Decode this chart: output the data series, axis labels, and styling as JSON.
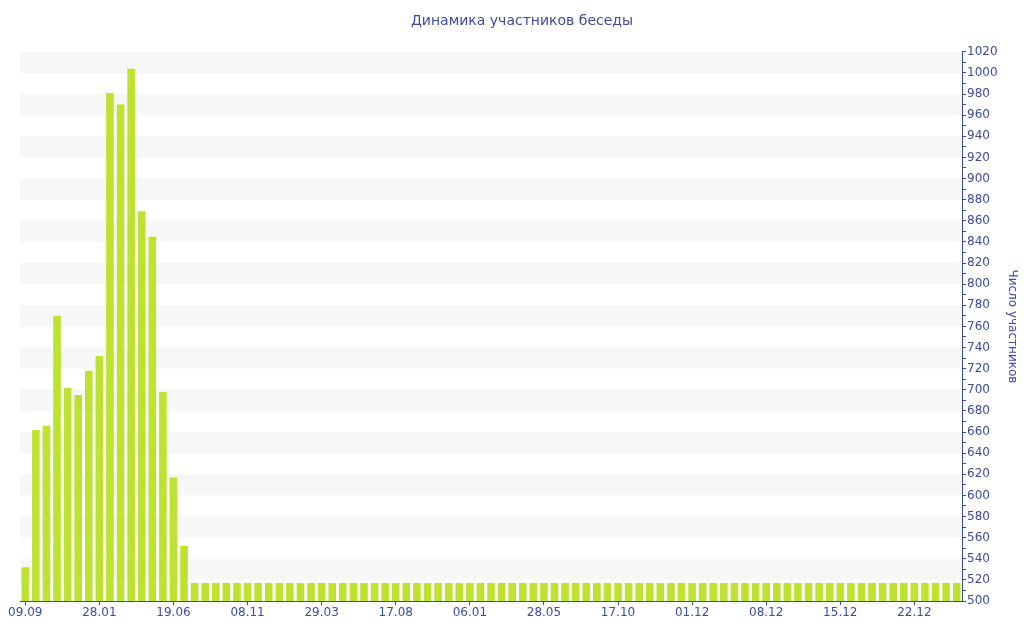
{
  "chart_data": {
    "type": "bar",
    "title": "Динамика участников беседы",
    "ylabel": "Число участников",
    "categories": [
      "09.09",
      null,
      null,
      null,
      null,
      null,
      null,
      "28.01",
      null,
      null,
      null,
      null,
      null,
      null,
      "19.06",
      null,
      null,
      null,
      null,
      null,
      null,
      "08.11",
      null,
      null,
      null,
      null,
      null,
      null,
      "29.03",
      null,
      null,
      null,
      null,
      null,
      null,
      "17.08",
      null,
      null,
      null,
      null,
      null,
      null,
      "06.01",
      null,
      null,
      null,
      null,
      null,
      null,
      "28.05",
      null,
      null,
      null,
      null,
      null,
      null,
      "17.10",
      null,
      null,
      null,
      null,
      null,
      null,
      "01.12",
      null,
      null,
      null,
      null,
      null,
      null,
      "08.12",
      null,
      null,
      null,
      null,
      null,
      null,
      "15.12",
      null,
      null,
      null,
      null,
      null,
      null,
      "22.12",
      null,
      null,
      null,
      null
    ],
    "values": [
      532,
      662,
      666,
      770,
      702,
      695,
      718,
      732,
      981,
      970,
      1004,
      869,
      845,
      698,
      617,
      552,
      517,
      517,
      517,
      517,
      517,
      517,
      517,
      517,
      517,
      517,
      517,
      517,
      517,
      517,
      517,
      517,
      517,
      517,
      517,
      517,
      517,
      517,
      517,
      517,
      517,
      517,
      517,
      517,
      517,
      517,
      517,
      517,
      517,
      517,
      517,
      517,
      517,
      517,
      517,
      517,
      517,
      517,
      517,
      517,
      517,
      517,
      517,
      517,
      517,
      517,
      517,
      517,
      517,
      517,
      517,
      517,
      517,
      517,
      517,
      517,
      517,
      517,
      517,
      517,
      517,
      517,
      517,
      517,
      517,
      517,
      517,
      517,
      517
    ],
    "color": "#bde22f",
    "ylim": [
      500,
      1020
    ],
    "yticks": [
      500,
      {
        "value": 510,
        "label": null
      },
      520,
      {
        "value": 530,
        "label": null
      },
      540,
      {
        "value": 550,
        "label": null
      },
      560,
      {
        "value": 570,
        "label": null
      },
      580,
      {
        "value": 590,
        "label": null
      },
      600,
      {
        "value": 610,
        "label": null
      },
      620,
      {
        "value": 630,
        "label": null
      },
      640,
      {
        "value": 650,
        "label": null
      },
      660,
      {
        "value": 670,
        "label": null
      },
      680,
      {
        "value": 690,
        "label": null
      },
      700,
      {
        "value": 710,
        "label": null
      },
      720,
      {
        "value": 730,
        "label": null
      },
      740,
      {
        "value": 750,
        "label": null
      },
      760,
      {
        "value": 770,
        "label": null
      },
      780,
      {
        "value": 790,
        "label": null
      },
      800,
      {
        "value": 810,
        "label": null
      },
      820,
      {
        "value": 830,
        "label": null
      },
      840,
      {
        "value": 850,
        "label": null
      },
      860,
      {
        "value": 870,
        "label": null
      },
      880,
      {
        "value": 890,
        "label": null
      },
      900,
      {
        "value": 910,
        "label": null
      },
      920,
      {
        "value": 930,
        "label": null
      },
      940,
      {
        "value": 950,
        "label": null
      },
      960,
      {
        "value": 970,
        "label": null
      },
      980,
      {
        "value": 990,
        "label": null
      },
      1000,
      {
        "value": 1010,
        "label": null
      },
      1020
    ],
    "bands": [
      {
        "axis": "y",
        "from": 520,
        "to": 540,
        "color": "#f7f7f7"
      },
      {
        "axis": "y",
        "from": 560,
        "to": 580,
        "color": "#f7f7f7"
      },
      {
        "axis": "y",
        "from": 600,
        "to": 620,
        "color": "#f7f7f7"
      },
      {
        "axis": "y",
        "from": 640,
        "to": 660,
        "color": "#f7f7f7"
      },
      {
        "axis": "y",
        "from": 680,
        "to": 700,
        "color": "#f7f7f7"
      },
      {
        "axis": "y",
        "from": 720,
        "to": 740,
        "color": "#f7f7f7"
      },
      {
        "axis": "y",
        "from": 760,
        "to": 780,
        "color": "#f7f7f7"
      },
      {
        "axis": "y",
        "from": 800,
        "to": 820,
        "color": "#f7f7f7"
      },
      {
        "axis": "y",
        "from": 840,
        "to": 860,
        "color": "#f7f7f7"
      },
      {
        "axis": "y",
        "from": 880,
        "to": 900,
        "color": "#f7f7f7"
      },
      {
        "axis": "y",
        "from": 920,
        "to": 940,
        "color": "#f7f7f7"
      },
      {
        "axis": "y",
        "from": 960,
        "to": 980,
        "color": "#f7f7f7"
      },
      {
        "axis": "y",
        "from": 1000,
        "to": 1020,
        "color": "#f7f7f7"
      }
    ]
  }
}
